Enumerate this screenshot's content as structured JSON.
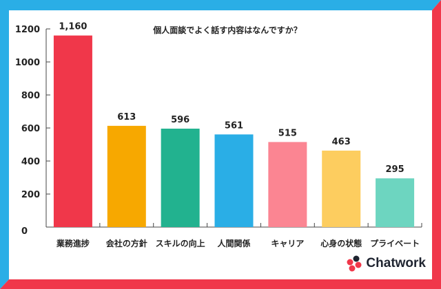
{
  "colors": {
    "frame_top_left": "#2aaee6",
    "frame_bottom_right": "#f0374a"
  },
  "chart_data": {
    "type": "bar",
    "title": "個人面談でよく話す内容はなんですか？",
    "xlabel": "",
    "ylabel": "",
    "categories": [
      "業務進捗",
      "会社の方針",
      "スキルの向上",
      "人間関係",
      "キャリア",
      "心身の状態",
      "プライベート"
    ],
    "values": [
      1160,
      613,
      596,
      561,
      515,
      463,
      295
    ],
    "data_labels": [
      "1,160",
      "613",
      "596",
      "561",
      "515",
      "463",
      "295"
    ],
    "colors": [
      "#f0374a",
      "#f7a800",
      "#22b28f",
      "#2aaee6",
      "#fb8592",
      "#fdcd5f",
      "#6dd5c0"
    ],
    "ylim": [
      0,
      1200
    ],
    "yticks": [
      "0",
      "200",
      "400",
      "600",
      "800",
      "1000",
      "1200"
    ],
    "grid": false,
    "legend": "none"
  },
  "brand": {
    "name": "Chatwork",
    "logo_icon": "chatwork-petal-logo"
  }
}
